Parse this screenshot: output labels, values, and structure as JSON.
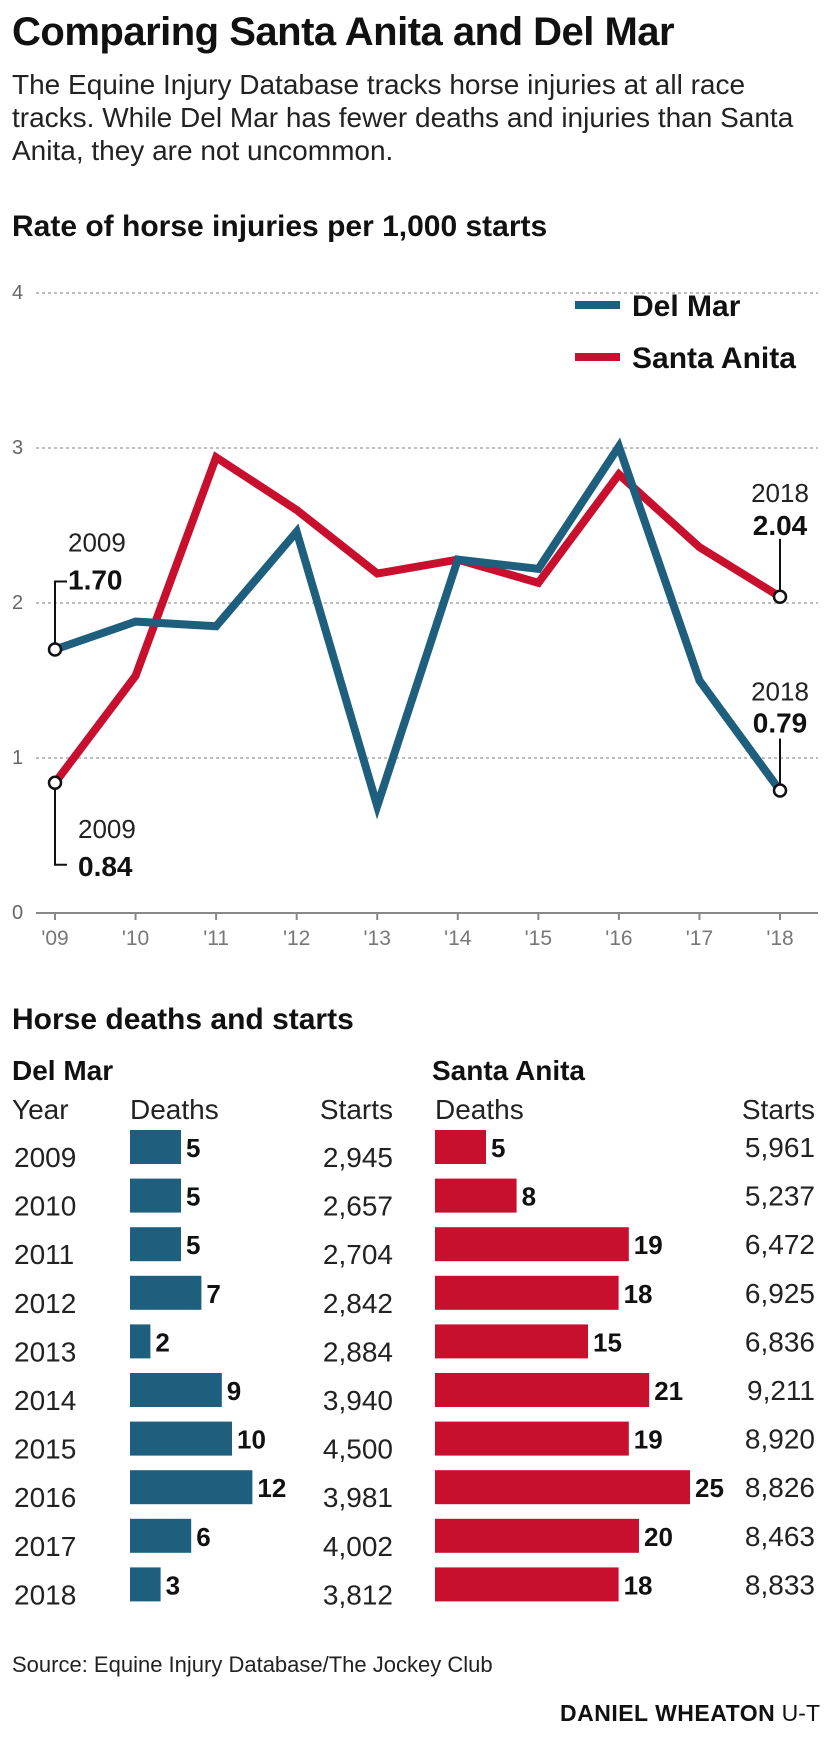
{
  "title": "Comparing Santa Anita and Del Mar",
  "subtitle": "The Equine Injury Database tracks horse injuries at all race tracks. While Del Mar has fewer deaths and injuries than Santa Anita, they are not uncommon.",
  "chart_heading": "Rate of horse injuries per 1,000 starts",
  "table_heading": "Horse deaths and starts",
  "source": "Source: Equine Injury Database/The Jockey Club",
  "credit_name": "DANIEL WHEATON",
  "credit_org": "U-T",
  "colors": {
    "del_mar": "#1e5f7d",
    "santa_anita": "#c8102e",
    "grid": "#aaaaaa",
    "axis": "#888888"
  },
  "chart_data": [
    {
      "type": "line",
      "title": "Rate of horse injuries per 1,000 starts",
      "x": [
        "'09",
        "'10",
        "'11",
        "'12",
        "'13",
        "'14",
        "'15",
        "'16",
        "'17",
        "'18"
      ],
      "ylim": [
        0,
        4
      ],
      "yticks": [
        "0",
        "1",
        "2",
        "3",
        "4"
      ],
      "grid": true,
      "legend_position": "top-right",
      "series": [
        {
          "name": "Del Mar",
          "values": [
            1.7,
            1.88,
            1.85,
            2.46,
            0.69,
            2.28,
            2.22,
            3.01,
            1.5,
            0.79
          ]
        },
        {
          "name": "Santa Anita",
          "values": [
            0.84,
            1.53,
            2.94,
            2.6,
            2.19,
            2.28,
            2.13,
            2.83,
            2.36,
            2.04
          ]
        }
      ],
      "annotations": {
        "del_mar_start": {
          "year": "2009",
          "value": "1.70"
        },
        "santa_anita_start": {
          "year": "2009",
          "value": "0.84"
        },
        "santa_anita_end": {
          "year": "2018",
          "value": "2.04"
        },
        "del_mar_end": {
          "year": "2018",
          "value": "0.79"
        }
      }
    },
    {
      "type": "bar",
      "title": "Horse deaths and starts",
      "categories": [
        "2009",
        "2010",
        "2011",
        "2012",
        "2013",
        "2014",
        "2015",
        "2016",
        "2017",
        "2018"
      ],
      "series": [
        {
          "name": "Del Mar",
          "values": [
            5,
            5,
            5,
            7,
            2,
            9,
            10,
            12,
            6,
            3
          ]
        },
        {
          "name": "Santa Anita",
          "values": [
            5,
            8,
            19,
            18,
            15,
            21,
            19,
            25,
            20,
            18
          ]
        }
      ],
      "starts": {
        "Del Mar": [
          "2,945",
          "2,657",
          "2,704",
          "2,842",
          "2,884",
          "3,940",
          "4,500",
          "3,981",
          "4,002",
          "3,812"
        ],
        "Santa Anita": [
          "5,961",
          "5,237",
          "6,472",
          "6,925",
          "6,836",
          "9,211",
          "8,920",
          "8,826",
          "8,463",
          "8,833"
        ]
      },
      "column_headers": {
        "del_mar_title": "Del Mar",
        "santa_anita_title": "Santa Anita",
        "year": "Year",
        "deaths": "Deaths",
        "starts": "Starts"
      }
    }
  ]
}
